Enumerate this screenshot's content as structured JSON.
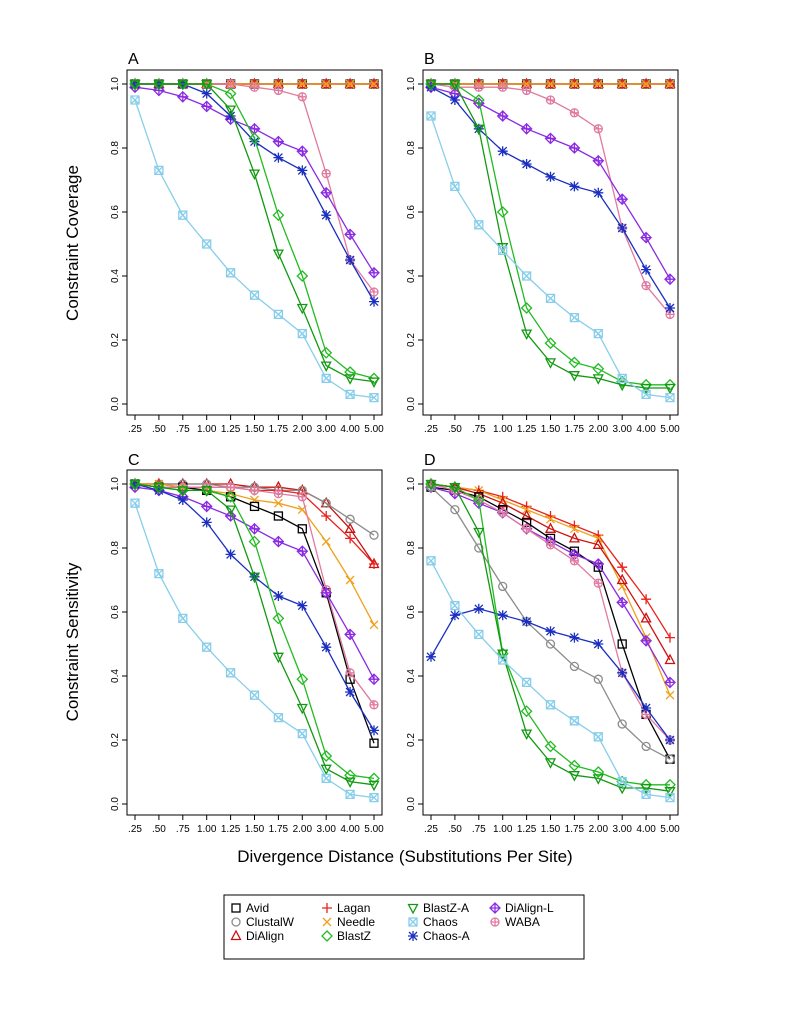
{
  "figure": {
    "ylabel_top": "Constraint Coverage",
    "ylabel_bottom": "Constraint Sensitivity",
    "xlabel": "Divergence Distance (Substitutions Per Site)"
  },
  "series_styles": [
    {
      "name": "Avid",
      "color": "#000000",
      "marker": "square"
    },
    {
      "name": "ClustalW",
      "color": "#8c8c8c",
      "marker": "circle"
    },
    {
      "name": "DiAlign",
      "color": "#cc1111",
      "marker": "triangle-up"
    },
    {
      "name": "Lagan",
      "color": "#e8221c",
      "marker": "plus"
    },
    {
      "name": "Needle",
      "color": "#f0a018",
      "marker": "x"
    },
    {
      "name": "BlastZ",
      "color": "#22bb22",
      "marker": "diamond"
    },
    {
      "name": "BlastZ-A",
      "color": "#119911",
      "marker": "triangle-down"
    },
    {
      "name": "Chaos",
      "color": "#87ceeb",
      "marker": "square-x"
    },
    {
      "name": "Chaos-A",
      "color": "#1a2fbf",
      "marker": "asterisk"
    },
    {
      "name": "DiAlign-L",
      "color": "#8a2be2",
      "marker": "diamond-plus"
    },
    {
      "name": "WABA",
      "color": "#e07aa0",
      "marker": "circle-plus"
    }
  ],
  "chart_data": [
    {
      "type": "line",
      "panel": "A",
      "categories": [
        ".25",
        ".50",
        ".75",
        "1.00",
        "1.25",
        "1.50",
        "1.75",
        "2.00",
        "3.00",
        "4.00",
        "5.00"
      ],
      "ylim": [
        0,
        1
      ],
      "yticks": [
        "0.0",
        "0.2",
        "0.4",
        "0.6",
        "0.8",
        "1.0"
      ],
      "ylabel": "Constraint Coverage",
      "series": [
        {
          "name": "Avid",
          "values": [
            1,
            1,
            1,
            1,
            1,
            1,
            1,
            1,
            1,
            1,
            1
          ]
        },
        {
          "name": "ClustalW",
          "values": [
            1,
            1,
            1,
            1,
            1,
            1,
            1,
            1,
            1,
            1,
            1
          ]
        },
        {
          "name": "DiAlign",
          "values": [
            1,
            1,
            1,
            1,
            1,
            1,
            1,
            1,
            1,
            1,
            1
          ]
        },
        {
          "name": "Lagan",
          "values": [
            1,
            1,
            1,
            1,
            1,
            1,
            1,
            1,
            1,
            1,
            1
          ]
        },
        {
          "name": "Needle",
          "values": [
            1,
            1,
            1,
            1,
            1,
            1,
            1,
            1,
            1,
            1,
            1
          ]
        },
        {
          "name": "WABA",
          "values": [
            1,
            1,
            1,
            1,
            1,
            0.99,
            0.98,
            0.96,
            0.72,
            0.45,
            0.35
          ]
        },
        {
          "name": "DiAlign-L",
          "values": [
            0.99,
            0.98,
            0.96,
            0.93,
            0.89,
            0.86,
            0.82,
            0.79,
            0.66,
            0.53,
            0.41
          ]
        },
        {
          "name": "Chaos-A",
          "values": [
            1,
            1,
            1,
            0.97,
            0.9,
            0.82,
            0.77,
            0.73,
            0.59,
            0.45,
            0.32
          ]
        },
        {
          "name": "BlastZ",
          "values": [
            1,
            1,
            1,
            1,
            0.97,
            0.83,
            0.59,
            0.4,
            0.16,
            0.1,
            0.08
          ]
        },
        {
          "name": "BlastZ-A",
          "values": [
            1,
            1,
            1,
            1,
            0.92,
            0.72,
            0.47,
            0.3,
            0.12,
            0.08,
            0.07
          ]
        },
        {
          "name": "Chaos",
          "values": [
            0.95,
            0.73,
            0.59,
            0.5,
            0.41,
            0.34,
            0.28,
            0.22,
            0.08,
            0.03,
            0.02
          ]
        }
      ]
    },
    {
      "type": "line",
      "panel": "B",
      "categories": [
        ".25",
        ".50",
        ".75",
        "1.00",
        "1.25",
        "1.50",
        "1.75",
        "2.00",
        "3.00",
        "4.00",
        "5.00"
      ],
      "ylim": [
        0,
        1
      ],
      "yticks": [
        "0.0",
        "0.2",
        "0.4",
        "0.6",
        "0.8",
        "1.0"
      ],
      "series": [
        {
          "name": "Avid",
          "values": [
            1,
            1,
            1,
            1,
            1,
            1,
            1,
            1,
            1,
            1,
            1
          ]
        },
        {
          "name": "ClustalW",
          "values": [
            1,
            1,
            1,
            1,
            1,
            1,
            1,
            1,
            1,
            1,
            1
          ]
        },
        {
          "name": "DiAlign",
          "values": [
            1,
            1,
            1,
            1,
            1,
            1,
            1,
            1,
            1,
            1,
            1
          ]
        },
        {
          "name": "Lagan",
          "values": [
            1,
            1,
            1,
            1,
            1,
            1,
            1,
            1,
            1,
            1,
            1
          ]
        },
        {
          "name": "Needle",
          "values": [
            1,
            1,
            1,
            1,
            1,
            1,
            1,
            1,
            1,
            1,
            1
          ]
        },
        {
          "name": "WABA",
          "values": [
            1,
            0.99,
            0.99,
            0.99,
            0.98,
            0.95,
            0.91,
            0.86,
            0.55,
            0.37,
            0.28
          ]
        },
        {
          "name": "DiAlign-L",
          "values": [
            0.99,
            0.97,
            0.94,
            0.9,
            0.86,
            0.83,
            0.8,
            0.76,
            0.64,
            0.52,
            0.39
          ]
        },
        {
          "name": "Chaos-A",
          "values": [
            0.99,
            0.95,
            0.86,
            0.79,
            0.75,
            0.71,
            0.68,
            0.66,
            0.55,
            0.42,
            0.3
          ]
        },
        {
          "name": "BlastZ",
          "values": [
            1,
            1,
            0.95,
            0.6,
            0.3,
            0.19,
            0.13,
            0.11,
            0.07,
            0.06,
            0.06
          ]
        },
        {
          "name": "BlastZ-A",
          "values": [
            1,
            1,
            0.86,
            0.49,
            0.22,
            0.13,
            0.09,
            0.08,
            0.06,
            0.05,
            0.05
          ]
        },
        {
          "name": "Chaos",
          "values": [
            0.9,
            0.68,
            0.56,
            0.48,
            0.4,
            0.33,
            0.27,
            0.22,
            0.08,
            0.03,
            0.02
          ]
        }
      ]
    },
    {
      "type": "line",
      "panel": "C",
      "categories": [
        ".25",
        ".50",
        ".75",
        "1.00",
        "1.25",
        "1.50",
        "1.75",
        "2.00",
        "3.00",
        "4.00",
        "5.00"
      ],
      "ylim": [
        0,
        1
      ],
      "yticks": [
        "0.0",
        "0.2",
        "0.4",
        "0.6",
        "0.8",
        "1.0"
      ],
      "ylabel": "Constraint Sensitivity",
      "series": [
        {
          "name": "DiAlign",
          "values": [
            1,
            1,
            1,
            1,
            1,
            0.99,
            0.99,
            0.98,
            0.94,
            0.86,
            0.75
          ]
        },
        {
          "name": "ClustalW",
          "values": [
            1,
            1,
            1,
            1,
            0.99,
            0.99,
            0.98,
            0.98,
            0.94,
            0.89,
            0.84
          ]
        },
        {
          "name": "Lagan",
          "values": [
            1,
            1,
            0.99,
            0.99,
            0.99,
            0.98,
            0.98,
            0.97,
            0.9,
            0.83,
            0.75
          ]
        },
        {
          "name": "Needle",
          "values": [
            1,
            1,
            0.99,
            0.98,
            0.97,
            0.95,
            0.94,
            0.92,
            0.82,
            0.7,
            0.56
          ]
        },
        {
          "name": "Avid",
          "values": [
            1,
            0.99,
            0.99,
            0.98,
            0.96,
            0.93,
            0.9,
            0.86,
            0.66,
            0.39,
            0.19
          ]
        },
        {
          "name": "WABA",
          "values": [
            1,
            0.99,
            0.99,
            0.99,
            0.99,
            0.98,
            0.97,
            0.96,
            0.67,
            0.41,
            0.31
          ]
        },
        {
          "name": "DiAlign-L",
          "values": [
            0.99,
            0.98,
            0.96,
            0.93,
            0.9,
            0.86,
            0.82,
            0.79,
            0.66,
            0.53,
            0.39
          ]
        },
        {
          "name": "Chaos-A",
          "values": [
            1,
            0.98,
            0.95,
            0.88,
            0.78,
            0.71,
            0.65,
            0.62,
            0.49,
            0.35,
            0.23
          ]
        },
        {
          "name": "BlastZ",
          "values": [
            1,
            0.99,
            0.98,
            0.98,
            0.96,
            0.82,
            0.58,
            0.39,
            0.15,
            0.09,
            0.08
          ]
        },
        {
          "name": "BlastZ-A",
          "values": [
            1,
            0.99,
            0.98,
            0.98,
            0.92,
            0.71,
            0.46,
            0.3,
            0.11,
            0.07,
            0.06
          ]
        },
        {
          "name": "Chaos",
          "values": [
            0.94,
            0.72,
            0.58,
            0.49,
            0.41,
            0.34,
            0.27,
            0.22,
            0.08,
            0.03,
            0.02
          ]
        }
      ]
    },
    {
      "type": "line",
      "panel": "D",
      "categories": [
        ".25",
        ".50",
        ".75",
        "1.00",
        "1.25",
        "1.50",
        "1.75",
        "2.00",
        "3.00",
        "4.00",
        "5.00"
      ],
      "ylim": [
        0,
        1
      ],
      "yticks": [
        "0.0",
        "0.2",
        "0.4",
        "0.6",
        "0.8",
        "1.0"
      ],
      "series": [
        {
          "name": "Lagan",
          "values": [
            1,
            0.99,
            0.98,
            0.96,
            0.93,
            0.9,
            0.87,
            0.84,
            0.74,
            0.64,
            0.52
          ]
        },
        {
          "name": "Needle",
          "values": [
            1,
            0.99,
            0.98,
            0.95,
            0.92,
            0.89,
            0.86,
            0.83,
            0.68,
            0.52,
            0.34
          ]
        },
        {
          "name": "DiAlign",
          "values": [
            1,
            0.99,
            0.97,
            0.94,
            0.9,
            0.86,
            0.83,
            0.81,
            0.7,
            0.58,
            0.45
          ]
        },
        {
          "name": "Avid",
          "values": [
            0.99,
            0.98,
            0.96,
            0.92,
            0.88,
            0.83,
            0.79,
            0.74,
            0.5,
            0.28,
            0.14
          ]
        },
        {
          "name": "DiAlign-L",
          "values": [
            0.99,
            0.97,
            0.94,
            0.91,
            0.86,
            0.82,
            0.78,
            0.75,
            0.63,
            0.51,
            0.38
          ]
        },
        {
          "name": "WABA",
          "values": [
            1,
            0.98,
            0.95,
            0.91,
            0.86,
            0.81,
            0.76,
            0.69,
            0.41,
            0.28,
            0.2
          ]
        },
        {
          "name": "ClustalW",
          "values": [
            0.99,
            0.92,
            0.8,
            0.68,
            0.57,
            0.5,
            0.43,
            0.39,
            0.25,
            0.18,
            0.14
          ]
        },
        {
          "name": "Chaos-A",
          "values": [
            0.46,
            0.59,
            0.61,
            0.59,
            0.57,
            0.54,
            0.52,
            0.5,
            0.41,
            0.3,
            0.2
          ]
        },
        {
          "name": "BlastZ",
          "values": [
            1,
            0.99,
            0.95,
            0.47,
            0.29,
            0.18,
            0.12,
            0.1,
            0.07,
            0.06,
            0.06
          ]
        },
        {
          "name": "BlastZ-A",
          "values": [
            1,
            0.99,
            0.85,
            0.47,
            0.22,
            0.13,
            0.09,
            0.08,
            0.05,
            0.05,
            0.04
          ]
        },
        {
          "name": "Chaos",
          "values": [
            0.76,
            0.62,
            0.53,
            0.45,
            0.38,
            0.31,
            0.26,
            0.21,
            0.07,
            0.03,
            0.02
          ]
        }
      ]
    }
  ]
}
